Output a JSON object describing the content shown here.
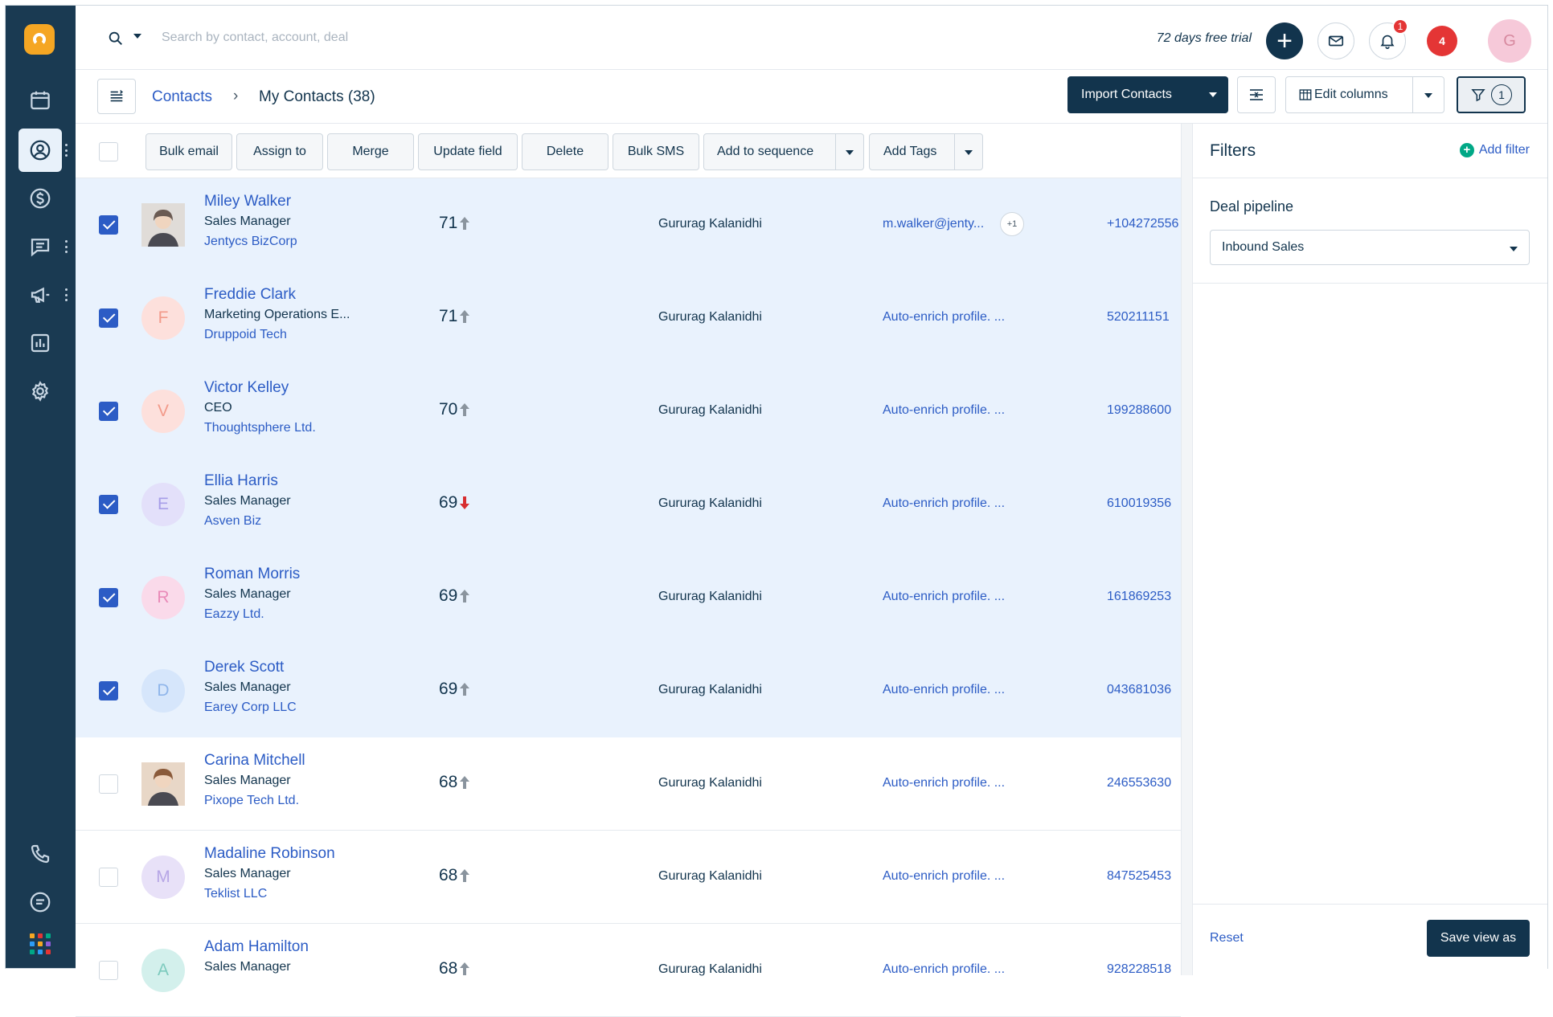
{
  "topbar": {
    "search_placeholder": "Search by contact, account, deal",
    "trial_text": "72 days free trial",
    "bell_badge": "1",
    "red_badge": "4",
    "user_initial": "G"
  },
  "breadcrumb": {
    "parent": "Contacts",
    "separator": "›",
    "current": "My Contacts (38)"
  },
  "toolbar": {
    "import_label": "Import Contacts",
    "edit_columns_label": "Edit columns",
    "filter_count": "1"
  },
  "actions": {
    "bulk_email": "Bulk email",
    "assign_to": "Assign to",
    "merge": "Merge",
    "update_field": "Update field",
    "delete": "Delete",
    "bulk_sms": "Bulk SMS",
    "add_to_sequence": "Add to sequence",
    "add_tags": "Add Tags"
  },
  "contacts": [
    {
      "name": "Miley Walker",
      "title": "Sales Manager",
      "company": "Jentycs BizCorp",
      "score": "71",
      "trend": "up",
      "owner": "Gururag Kalanidhi",
      "email": "m.walker@jenty...",
      "extra": "+1",
      "phone": "+104272556",
      "selected": true,
      "initial": "",
      "avatar_bg": "#e0dcd8",
      "avatar_fg": "#6b5b53"
    },
    {
      "name": "Freddie Clark",
      "title": "Marketing Operations E...",
      "company": "Druppoid Tech",
      "score": "71",
      "trend": "up",
      "owner": "Gururag Kalanidhi",
      "email": "Auto-enrich profile. ...",
      "phone": "520211151",
      "selected": true,
      "initial": "F",
      "avatar_bg": "#fde0dc",
      "avatar_fg": "#f29a8a"
    },
    {
      "name": "Victor Kelley",
      "title": "CEO",
      "company": "Thoughtsphere Ltd.",
      "score": "70",
      "trend": "up",
      "owner": "Gururag Kalanidhi",
      "email": "Auto-enrich profile. ...",
      "phone": "199288600",
      "selected": true,
      "initial": "V",
      "avatar_bg": "#fde0dc",
      "avatar_fg": "#f29a8a"
    },
    {
      "name": "Ellia Harris",
      "title": "Sales Manager",
      "company": "Asven Biz",
      "score": "69",
      "trend": "down",
      "owner": "Gururag Kalanidhi",
      "email": "Auto-enrich profile. ...",
      "phone": "610019356",
      "selected": true,
      "initial": "E",
      "avatar_bg": "#e3e0fa",
      "avatar_fg": "#a79ee8"
    },
    {
      "name": "Roman Morris",
      "title": "Sales Manager",
      "company": "Eazzy Ltd.",
      "score": "69",
      "trend": "up",
      "owner": "Gururag Kalanidhi",
      "email": "Auto-enrich profile. ...",
      "phone": "161869253",
      "selected": true,
      "initial": "R",
      "avatar_bg": "#fadaea",
      "avatar_fg": "#e98ab8"
    },
    {
      "name": "Derek Scott",
      "title": "Sales Manager",
      "company": "Earey Corp LLC",
      "score": "69",
      "trend": "up",
      "owner": "Gururag Kalanidhi",
      "email": "Auto-enrich profile. ...",
      "phone": "043681036",
      "selected": true,
      "initial": "D",
      "avatar_bg": "#d6e6fb",
      "avatar_fg": "#8fb5ea"
    },
    {
      "name": "Carina Mitchell",
      "title": "Sales Manager",
      "company": "Pixope Tech Ltd.",
      "score": "68",
      "trend": "up",
      "owner": "Gururag Kalanidhi",
      "email": "Auto-enrich profile. ...",
      "phone": "246553630",
      "selected": false,
      "initial": "",
      "avatar_bg": "#e8d7c7",
      "avatar_fg": "#8a5a3a"
    },
    {
      "name": "Madaline Robinson",
      "title": "Sales Manager",
      "company": "Teklist LLC",
      "score": "68",
      "trend": "up",
      "owner": "Gururag Kalanidhi",
      "email": "Auto-enrich profile. ...",
      "phone": "847525453",
      "selected": false,
      "initial": "M",
      "avatar_bg": "#e8e1f8",
      "avatar_fg": "#b6a6e6"
    },
    {
      "name": "Adam Hamilton",
      "title": "Sales Manager",
      "company": "",
      "score": "68",
      "trend": "up",
      "owner": "Gururag Kalanidhi",
      "email": "Auto-enrich profile. ...",
      "phone": "928228518",
      "selected": false,
      "initial": "A",
      "avatar_bg": "#d3f0ec",
      "avatar_fg": "#7ccabd"
    }
  ],
  "filters": {
    "title": "Filters",
    "add_filter": "Add filter",
    "pipeline_label": "Deal pipeline",
    "pipeline_value": "Inbound Sales",
    "reset": "Reset",
    "save_view": "Save view as"
  },
  "colors": {
    "nav_bg": "#1a3a52",
    "primary_dark": "#12344d",
    "link_blue": "#2c5cc5",
    "selected_row": "#e9f2fd",
    "badge_red": "#e43535",
    "trend_up": "#8a949e",
    "trend_down": "#d72d30"
  }
}
